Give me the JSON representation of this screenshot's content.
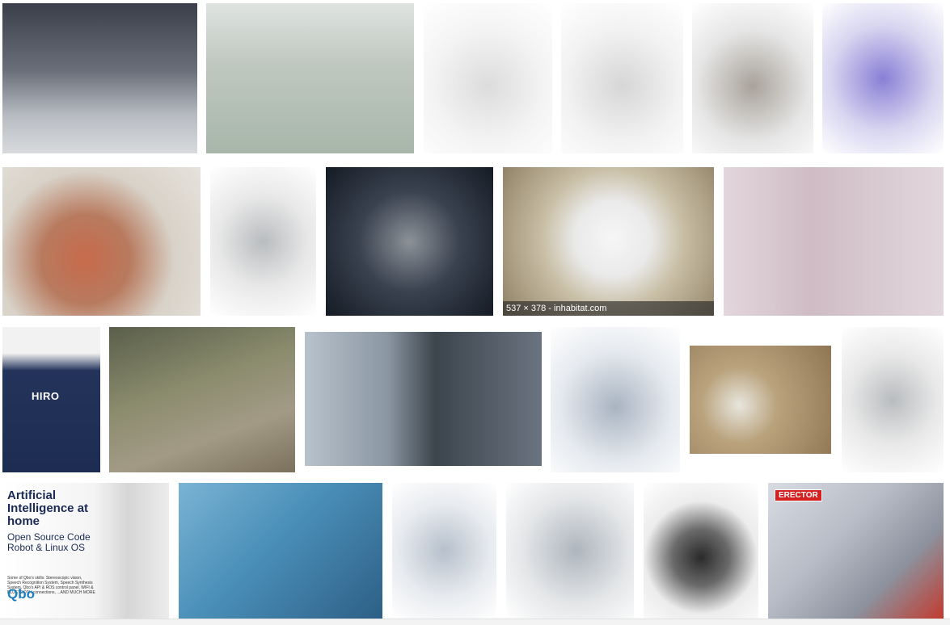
{
  "results": {
    "row1": [
      {
        "name": "humanoid-robot-crowd-image",
        "color": "#5a5f6a"
      },
      {
        "name": "green-robot-hug-image",
        "color": "#a8b6a9"
      },
      {
        "name": "white-robot-dog-image",
        "color": "#eeeeee"
      },
      {
        "name": "dalmatian-robot-dog-image",
        "color": "#f0f0f0"
      },
      {
        "name": "brown-robot-dog-image",
        "color": "#e8e8e8"
      },
      {
        "name": "purple-toy-robot-image",
        "color": "#e6e6f2"
      }
    ],
    "row2": [
      {
        "name": "blob-robots-image",
        "color": "#c8b9a8"
      },
      {
        "name": "joebot-robot-image",
        "color": "#f6f6f6"
      },
      {
        "name": "silver-robot-dark-bg-image",
        "color": "#1b2430"
      },
      {
        "name": "pillow-face-robot-image",
        "color": "#c9bfa6",
        "caption": "537 × 378 - inhabitat.com"
      },
      {
        "name": "humanoid-robots-pink-bg-image",
        "color": "#d9c9cf"
      }
    ],
    "row3": [
      {
        "name": "hiro-robot-image",
        "color": "#f2f2f2",
        "label": "HIRO"
      },
      {
        "name": "nao-robot-park-image",
        "color": "#8a8b6d"
      },
      {
        "name": "dark-humanoid-robot-image",
        "color": "#6a7480"
      },
      {
        "name": "aibo-robot-dog-image",
        "color": "#f2f4f6"
      },
      {
        "name": "aibo-on-carpet-image",
        "color": "#a8906a"
      },
      {
        "name": "joebot-robot-repeat-image",
        "color": "#f6f6f6"
      }
    ],
    "row4": [
      {
        "name": "qbo-robot-ad-image",
        "color": "#f4f4f4",
        "title": "Artificial Intelligence at home",
        "subtitle": "Open Source Code Robot & Linux OS",
        "features": "Some of Qbo's skills: Stereoscopic vision, Speech Recognition System, Speech Synthesis System, Qbo's API & ROS control panel, WIFI & BLUETOOTH connections, ...AND MUCH MORE",
        "logo": "Qbo"
      },
      {
        "name": "man-with-dinosaur-robot-image",
        "color": "#4a8fb8"
      },
      {
        "name": "service-robot-image",
        "color": "#f2f2f2"
      },
      {
        "name": "man-with-service-robot-image",
        "color": "#eeeeee"
      },
      {
        "name": "panda-robot-image",
        "color": "#f0f0f0"
      },
      {
        "name": "erector-robot-box-image",
        "color": "#b8bcc6",
        "brand": "ERECTOR"
      }
    ]
  }
}
